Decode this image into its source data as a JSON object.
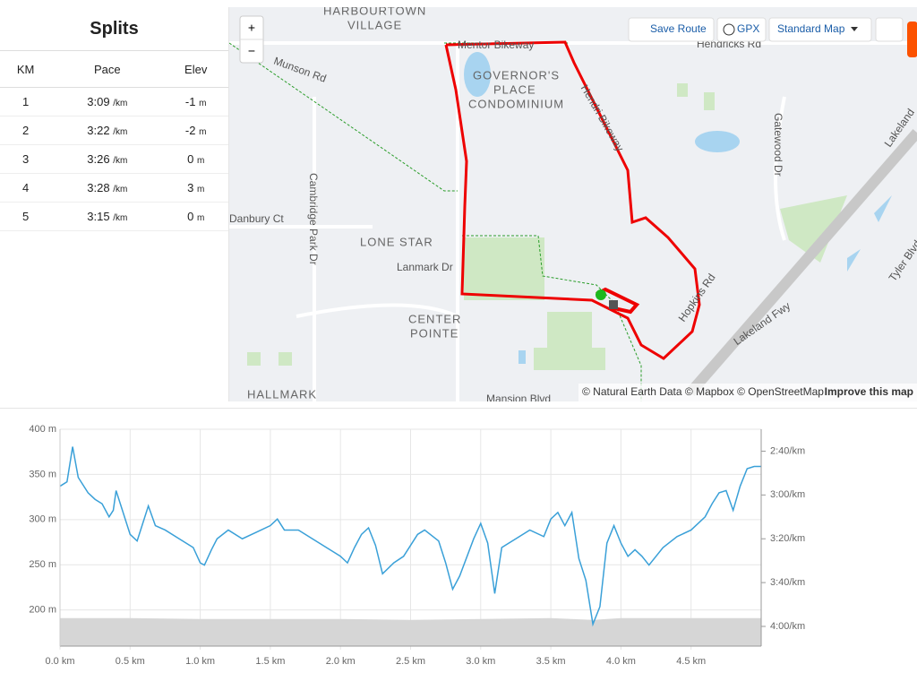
{
  "splits": {
    "title": "Splits",
    "headers": [
      "KM",
      "Pace",
      "Elev"
    ],
    "rows": [
      [
        "1",
        "3:09",
        "/km",
        "-1",
        "m"
      ],
      [
        "2",
        "3:22",
        "/km",
        "-2",
        "m"
      ],
      [
        "3",
        "3:26",
        "/km",
        "0",
        "m"
      ],
      [
        "4",
        "3:28",
        "/km",
        "3",
        "m"
      ],
      [
        "5",
        "3:15",
        "/km",
        "0",
        "m"
      ]
    ]
  },
  "map": {
    "controls": {
      "zoom_in": "+",
      "zoom_out": "−",
      "save_route": "Save Route",
      "gpx": "GPX",
      "map_style": "Standard Map"
    },
    "labels": [
      "HARBOURTOWN",
      "VILLAGE",
      "Munson Rd",
      "Mentor Bikeway",
      "Hendricks Rd",
      "GOVERNOR'S",
      "PLACE",
      "CONDOMINIUM",
      "Hendri Bikeway",
      "Gatewood Dr",
      "Lakeland",
      "Cambridge Park Dr",
      "Danbury Ct",
      "LONE STAR",
      "Lanmark Dr",
      "CENTER",
      "POINTE",
      "Tyler Blvd",
      "Lakeland Fwy",
      "Hopkins Rd",
      "HALLMARK",
      "Mansion Blvd"
    ],
    "attribution": "© Natural Earth Data © Mapbox © OpenStreetMap",
    "improve": "Improve this map"
  },
  "chart_data": {
    "type": "line",
    "xlim": [
      0,
      5
    ],
    "xticks": [
      {
        "value": 0,
        "label": "0.0 km"
      },
      {
        "value": 0.5,
        "label": "0.5 km"
      },
      {
        "value": 1,
        "label": "1.0 km"
      },
      {
        "value": 1.5,
        "label": "1.5 km"
      },
      {
        "value": 2,
        "label": "2.0 km"
      },
      {
        "value": 2.5,
        "label": "2.5 km"
      },
      {
        "value": 3,
        "label": "3.0 km"
      },
      {
        "value": 3.5,
        "label": "3.5 km"
      },
      {
        "value": 4,
        "label": "4.0 km"
      },
      {
        "value": 4.5,
        "label": "4.5 km"
      }
    ],
    "ylim": [
      160,
      400
    ],
    "yticks": [
      {
        "value": 200,
        "label": "200 m"
      },
      {
        "value": 250,
        "label": "250 m"
      },
      {
        "value": 300,
        "label": "300 m"
      },
      {
        "value": 350,
        "label": "350 m"
      },
      {
        "value": 400,
        "label": "400 m"
      }
    ],
    "y2lim": [
      249,
      150
    ],
    "y2ticks": [
      {
        "value": 160,
        "label": "2:40/km"
      },
      {
        "value": 180,
        "label": "3:00/km"
      },
      {
        "value": 200,
        "label": "3:20/km"
      },
      {
        "value": 220,
        "label": "3:40/km"
      },
      {
        "value": 240,
        "label": "4:00/km"
      }
    ],
    "grid": true,
    "series": [
      {
        "type": "area",
        "color": "#d6d6d6",
        "x": [
          0,
          0.5,
          1,
          1.5,
          2,
          2.5,
          3,
          3.5,
          3.8,
          4,
          4.5,
          5
        ],
        "values": [
          191,
          191,
          190,
          190,
          190,
          189,
          190,
          191,
          189,
          191,
          191,
          191
        ]
      },
      {
        "type": "line",
        "axis": "y2",
        "color": "#3aa0d8",
        "x": [
          0,
          0.05,
          0.09,
          0.13,
          0.2,
          0.25,
          0.3,
          0.35,
          0.38,
          0.4,
          0.43,
          0.5,
          0.55,
          0.6,
          0.63,
          0.68,
          0.75,
          0.85,
          0.95,
          1,
          1.03,
          1.08,
          1.12,
          1.2,
          1.3,
          1.4,
          1.5,
          1.55,
          1.6,
          1.7,
          1.8,
          1.9,
          2,
          2.05,
          2.1,
          2.15,
          2.2,
          2.25,
          2.3,
          2.38,
          2.45,
          2.55,
          2.6,
          2.7,
          2.75,
          2.8,
          2.85,
          2.95,
          3,
          3.05,
          3.1,
          3.15,
          3.25,
          3.35,
          3.45,
          3.5,
          3.55,
          3.6,
          3.65,
          3.7,
          3.75,
          3.8,
          3.85,
          3.9,
          3.95,
          4,
          4.05,
          4.1,
          4.15,
          4.2,
          4.3,
          4.4,
          4.5,
          4.6,
          4.65,
          4.7,
          4.75,
          4.8,
          4.85,
          4.9,
          4.95,
          5
        ],
        "values": [
          176,
          174,
          158,
          172,
          179,
          182,
          184,
          190,
          187,
          178,
          184,
          198,
          201,
          191,
          185,
          194,
          196,
          200,
          204,
          211,
          212,
          205,
          200,
          196,
          200,
          197,
          194,
          191,
          196,
          196,
          200,
          204,
          208,
          211,
          204,
          198,
          195,
          203,
          216,
          211,
          208,
          198,
          196,
          201,
          211,
          223,
          217,
          200,
          193,
          202,
          225,
          204,
          200,
          196,
          199,
          191,
          188,
          194,
          188,
          209,
          219,
          239,
          231,
          202,
          194,
          202,
          208,
          205,
          208,
          212,
          204,
          199,
          196,
          190,
          184,
          179,
          178,
          187,
          176,
          168,
          167,
          167
        ]
      }
    ]
  }
}
